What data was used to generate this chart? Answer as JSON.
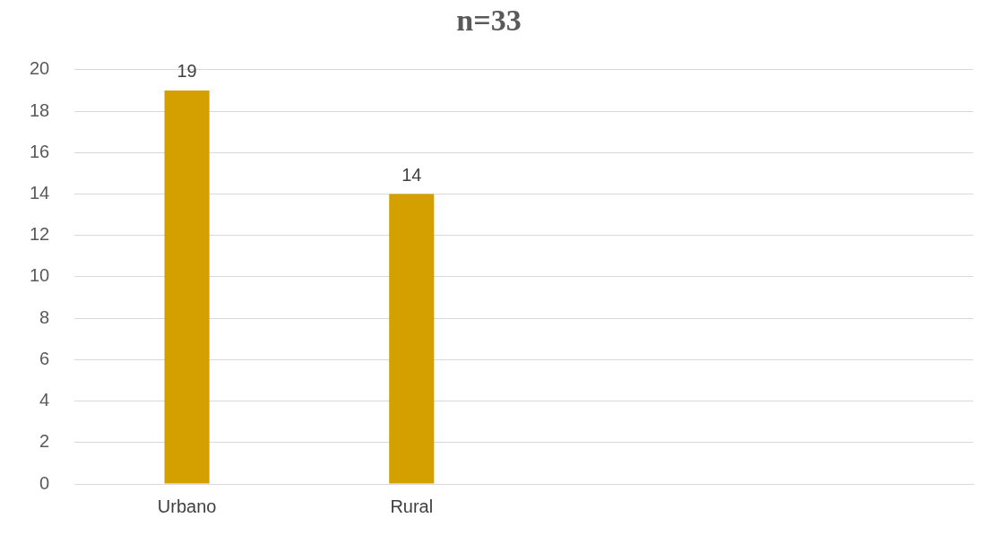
{
  "chart_data": {
    "type": "bar",
    "title": "n=33",
    "categories": [
      "Urbano",
      "Rural",
      null,
      null
    ],
    "values": [
      19,
      14,
      null,
      null
    ],
    "color": "#d4a000",
    "ylim": [
      0,
      20
    ],
    "yticks": [
      0,
      2,
      4,
      6,
      8,
      10,
      12,
      14,
      16,
      18,
      20
    ],
    "grid": "y",
    "legend": false,
    "data_labels": true
  }
}
